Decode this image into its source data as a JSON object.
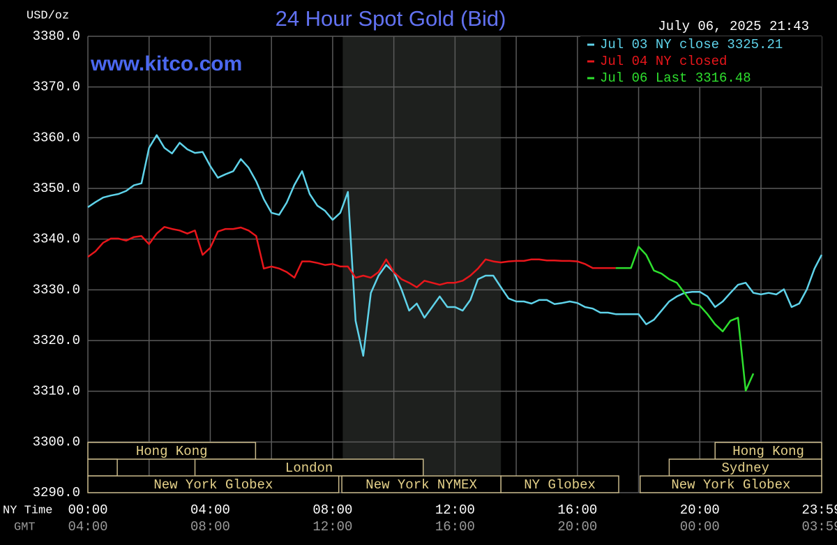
{
  "chart_data": {
    "type": "line",
    "title": "24 Hour Spot Gold (Bid)",
    "watermark": "www.kitco.com",
    "timestamp": "July 06, 2025 21:43",
    "ylabel": "USD/oz",
    "xlabel": "NY Time",
    "x2label": "GMT",
    "x": [
      0,
      0.25,
      0.5,
      0.75,
      1,
      1.25,
      1.5,
      1.75,
      2,
      2.25,
      2.5,
      2.75,
      3,
      3.25,
      3.5,
      3.75,
      4,
      4.25,
      4.5,
      4.75,
      5,
      5.25,
      5.5,
      5.75,
      6,
      6.25,
      6.5,
      6.75,
      7,
      7.25,
      7.5,
      7.75,
      8,
      8.25,
      8.5,
      8.75,
      9,
      9.25,
      9.5,
      9.75,
      10,
      10.25,
      10.5,
      10.75,
      11,
      11.25,
      11.5,
      11.75,
      12,
      12.25,
      12.5,
      12.75,
      13,
      13.25,
      13.5,
      13.75,
      14,
      14.25,
      14.5,
      14.75,
      15,
      15.25,
      15.5,
      15.75,
      16,
      16.25,
      16.5,
      16.75,
      17,
      17.25,
      17.5,
      17.75,
      18,
      18.25,
      18.5,
      18.75,
      19,
      19.25,
      19.5,
      19.75,
      20,
      20.25,
      20.5,
      20.75,
      21,
      21.25,
      21.5,
      21.75,
      22,
      22.25,
      22.5,
      22.75,
      23,
      23.25,
      23.5,
      23.75,
      23.983
    ],
    "series": [
      {
        "name": "Jul 03 NY close 3325.21",
        "color": "#5fd3ea",
        "values": [
          3346.3,
          3347.3,
          3348.2,
          3348.6,
          3348.9,
          3349.5,
          3350.6,
          3351.0,
          3358.0,
          3360.5,
          3358.0,
          3356.9,
          3359.0,
          3357.7,
          3357.0,
          3357.2,
          3354.4,
          3352.1,
          3352.8,
          3353.4,
          3355.8,
          3354.1,
          3351.4,
          3347.9,
          3345.2,
          3344.8,
          3347.2,
          3350.7,
          3353.4,
          3348.9,
          3346.6,
          3345.6,
          3343.8,
          3345.2,
          3349.3,
          3323.9,
          3317.0,
          3329.4,
          3332.8,
          3334.9,
          3333.5,
          3330.1,
          3325.9,
          3327.3,
          3324.5,
          3326.6,
          3328.7,
          3326.6,
          3326.6,
          3325.9,
          3328.0,
          3332.1,
          3332.8,
          3332.8,
          3330.5,
          3328.3,
          3327.7,
          3327.7,
          3327.3,
          3328.0,
          3328.0,
          3327.2,
          3327.4,
          3327.7,
          3327.4,
          3326.6,
          3326.3,
          3325.5,
          3325.5,
          3325.2,
          3325.2,
          3325.2,
          3325.2,
          3323.2,
          3324.1,
          3325.9,
          3327.7,
          3328.7,
          3329.4,
          3329.6,
          3329.6,
          3328.7,
          3326.6,
          3327.7,
          3329.4,
          3331.0,
          3331.4,
          3329.4,
          3329.1,
          3329.4,
          3329.1,
          3330.1,
          3326.6,
          3327.3,
          3330.1,
          3334.2,
          3336.9
        ]
      },
      {
        "name": "Jul 04 NY closed",
        "color": "#e8161b",
        "values": [
          3336.5,
          3337.6,
          3339.3,
          3340.1,
          3340.1,
          3339.7,
          3340.4,
          3340.6,
          3339.0,
          3341.1,
          3342.4,
          3342.0,
          3341.7,
          3341.1,
          3341.7,
          3336.9,
          3338.3,
          3341.5,
          3342.0,
          3342.0,
          3342.3,
          3341.7,
          3340.6,
          3334.2,
          3334.6,
          3334.2,
          3333.5,
          3332.4,
          3335.6,
          3335.6,
          3335.3,
          3334.9,
          3335.1,
          3334.6,
          3334.6,
          3332.4,
          3332.8,
          3332.4,
          3333.5,
          3336.0,
          3333.5,
          3332.1,
          3331.4,
          3330.5,
          3331.8,
          3331.4,
          3331.0,
          3331.4,
          3331.4,
          3331.8,
          3332.8,
          3334.2,
          3336.0,
          3335.6,
          3335.4,
          3335.6,
          3335.7,
          3335.7,
          3336.0,
          3336.0,
          3335.8,
          3335.8,
          3335.7,
          3335.7,
          3335.6,
          3335.1,
          3334.3,
          3334.3,
          3334.3,
          3334.3,
          null,
          null,
          null,
          null,
          null,
          null,
          null,
          null,
          null,
          null,
          null,
          null,
          null,
          null,
          null,
          null,
          null,
          null,
          null,
          null,
          null,
          null,
          null,
          null,
          null,
          null,
          null
        ]
      },
      {
        "name": "Jul 06 Last 3316.48",
        "color": "#2ee02e",
        "values": [
          null,
          null,
          null,
          null,
          null,
          null,
          null,
          null,
          null,
          null,
          null,
          null,
          null,
          null,
          null,
          null,
          null,
          null,
          null,
          null,
          null,
          null,
          null,
          null,
          null,
          null,
          null,
          null,
          null,
          null,
          null,
          null,
          null,
          null,
          null,
          null,
          null,
          null,
          null,
          null,
          null,
          null,
          null,
          null,
          null,
          null,
          null,
          null,
          null,
          null,
          null,
          null,
          null,
          null,
          null,
          null,
          null,
          null,
          null,
          null,
          null,
          null,
          null,
          null,
          null,
          null,
          null,
          null,
          null,
          3334.3,
          3334.3,
          3334.3,
          3338.5,
          3336.9,
          3333.8,
          3333.2,
          3332.1,
          3331.4,
          3329.4,
          3327.3,
          3326.9,
          3325.2,
          3323.2,
          3321.8,
          3323.9,
          3324.5,
          3310.1,
          3313.5,
          null,
          null,
          null,
          null,
          null,
          null,
          null,
          null,
          null
        ]
      }
    ],
    "xlim": [
      0,
      23.983
    ],
    "xticks": [
      {
        "value": 0,
        "label": "00:00"
      },
      {
        "value": 4,
        "label": "04:00"
      },
      {
        "value": 8,
        "label": "08:00"
      },
      {
        "value": 12,
        "label": "12:00"
      },
      {
        "value": 16,
        "label": "16:00"
      },
      {
        "value": 20,
        "label": "20:00"
      },
      {
        "value": 23.983,
        "label": "23:59"
      }
    ],
    "x2ticks": [
      {
        "value": 0,
        "label": "04:00"
      },
      {
        "value": 4,
        "label": "08:00"
      },
      {
        "value": 8,
        "label": "12:00"
      },
      {
        "value": 12,
        "label": "16:00"
      },
      {
        "value": 16,
        "label": "20:00"
      },
      {
        "value": 20,
        "label": "00:00"
      },
      {
        "value": 23.983,
        "label": "03:59"
      }
    ],
    "xgrid_minor": [
      2,
      6,
      10,
      14,
      18,
      22
    ],
    "ylim": [
      3290,
      3380
    ],
    "yticks": [
      {
        "value": 3290,
        "label": "3290.0"
      },
      {
        "value": 3300,
        "label": "3300.0"
      },
      {
        "value": 3310,
        "label": "3310.0"
      },
      {
        "value": 3320,
        "label": "3320.0"
      },
      {
        "value": 3330,
        "label": "3330.0"
      },
      {
        "value": 3340,
        "label": "3340.0"
      },
      {
        "value": 3350,
        "label": "3350.0"
      },
      {
        "value": 3360,
        "label": "3360.0"
      },
      {
        "value": 3370,
        "label": "3370.0"
      },
      {
        "value": 3380,
        "label": "3380.0"
      }
    ],
    "grid": true,
    "legend": "upper right",
    "shaded_x": [
      8.33,
      13.5
    ],
    "sessions": [
      {
        "label": "Hong Kong",
        "row": 1,
        "start": 0,
        "end": 5.48
      },
      {
        "label": "Hong Kong",
        "row": 1,
        "start": 20.5,
        "end": 23.983
      },
      {
        "label": null,
        "row": 2,
        "start": 0,
        "end": 0.96
      },
      {
        "label": "London",
        "row": 2,
        "start": 3.5,
        "end": 10.96
      },
      {
        "label": "Sydney",
        "row": 2,
        "start": 19.0,
        "end": 23.983
      },
      {
        "label": "New York Globex",
        "row": 3,
        "start": 0,
        "end": 8.2
      },
      {
        "label": "New York NYMEX",
        "row": 3,
        "start": 8.3,
        "end": 13.5
      },
      {
        "label": "NY Globex",
        "row": 3,
        "start": 13.5,
        "end": 17.35
      },
      {
        "label": "New York Globex",
        "row": 3,
        "start": 18.05,
        "end": 23.983
      }
    ]
  }
}
